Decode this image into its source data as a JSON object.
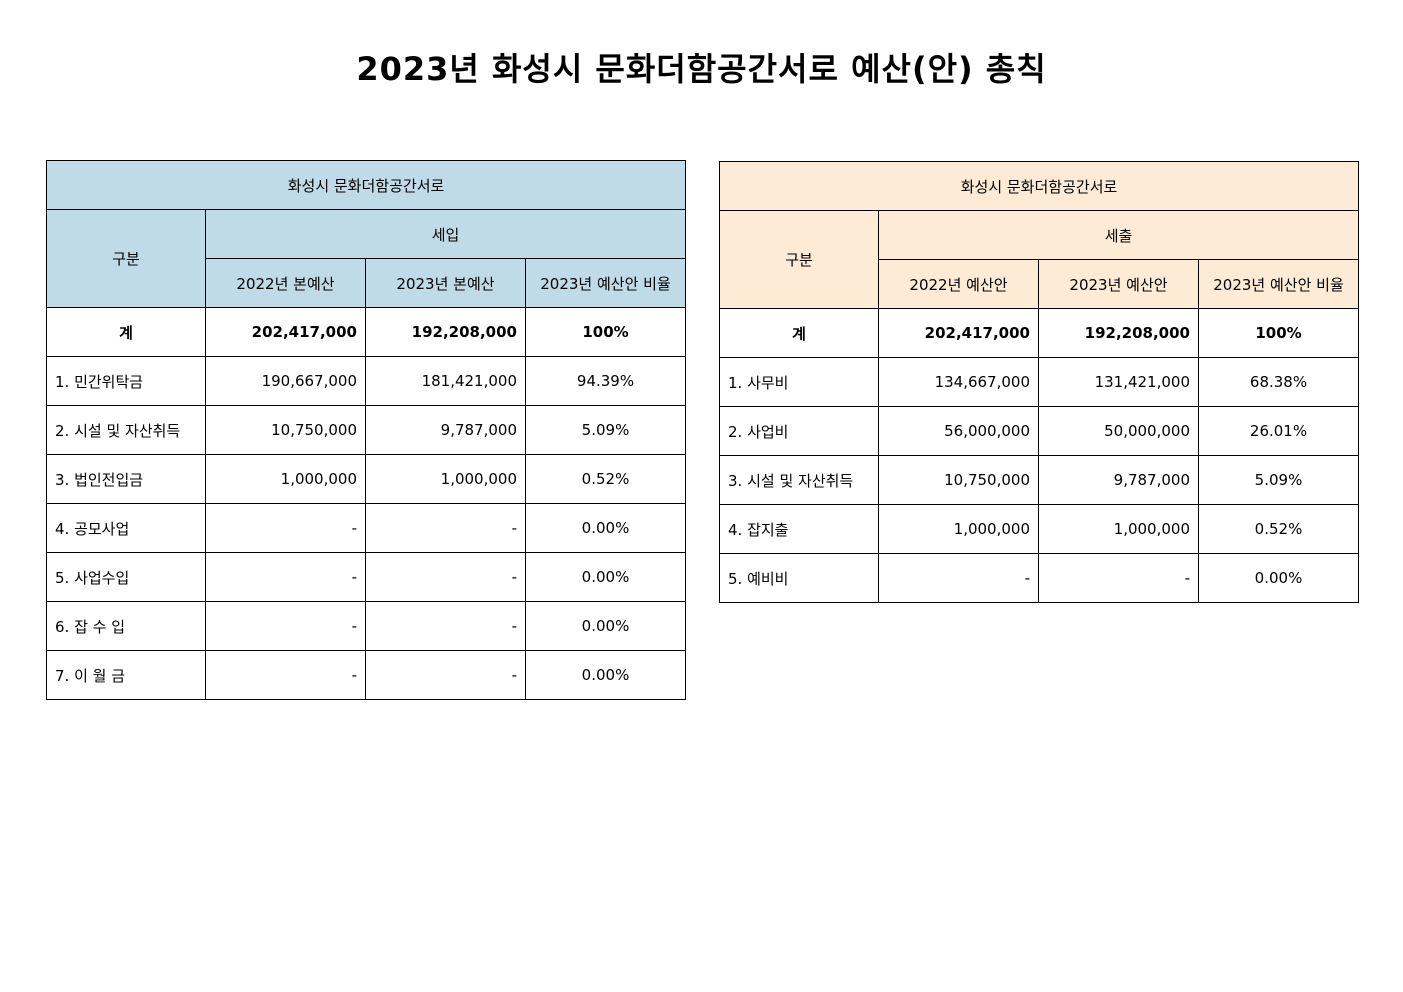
{
  "title": "2023년 화성시 문화더함공간서로 예산(안) 총칙",
  "colors": {
    "income_header_bg": "#c0dbe8",
    "expense_header_bg": "#fdebd5"
  },
  "income": {
    "caption": "화성시 문화더함공간서로",
    "category_header": "구분",
    "group_header": "세입",
    "col1": "2022년 본예산",
    "col2": "2023년 본예산",
    "col3": "2023년 예산안 비율",
    "rows": [
      {
        "label": "계",
        "v1": "202,417,000",
        "v2": "192,208,000",
        "pct": "100%"
      },
      {
        "label": "1. 민간위탁금",
        "v1": "190,667,000",
        "v2": "181,421,000",
        "pct": "94.39%"
      },
      {
        "label": "2. 시설 및 자산취득",
        "v1": "10,750,000",
        "v2": "9,787,000",
        "pct": "5.09%"
      },
      {
        "label": "3. 법인전입금",
        "v1": "1,000,000",
        "v2": "1,000,000",
        "pct": "0.52%"
      },
      {
        "label": "4. 공모사업",
        "v1": "-",
        "v2": "-",
        "pct": "0.00%"
      },
      {
        "label": "5. 사업수입",
        "v1": "-",
        "v2": "-",
        "pct": "0.00%"
      },
      {
        "label": "6. 잡 수 입",
        "v1": "-",
        "v2": "-",
        "pct": "0.00%"
      },
      {
        "label": "7. 이 월 금",
        "v1": "-",
        "v2": "-",
        "pct": "0.00%"
      }
    ]
  },
  "expense": {
    "caption": "화성시 문화더함공간서로",
    "category_header": "구분",
    "group_header": "세출",
    "col1": "2022년 예산안",
    "col2": "2023년 예산안",
    "col3": "2023년 예산안 비율",
    "rows": [
      {
        "label": "계",
        "v1": "202,417,000",
        "v2": "192,208,000",
        "pct": "100%"
      },
      {
        "label": "1. 사무비",
        "v1": "134,667,000",
        "v2": "131,421,000",
        "pct": "68.38%"
      },
      {
        "label": "2. 사업비",
        "v1": "56,000,000",
        "v2": "50,000,000",
        "pct": "26.01%"
      },
      {
        "label": "3. 시설 및 자산취득",
        "v1": "10,750,000",
        "v2": "9,787,000",
        "pct": "5.09%"
      },
      {
        "label": "4. 잡지출",
        "v1": "1,000,000",
        "v2": "1,000,000",
        "pct": "0.52%"
      },
      {
        "label": "5. 예비비",
        "v1": "-",
        "v2": "-",
        "pct": "0.00%"
      }
    ]
  }
}
